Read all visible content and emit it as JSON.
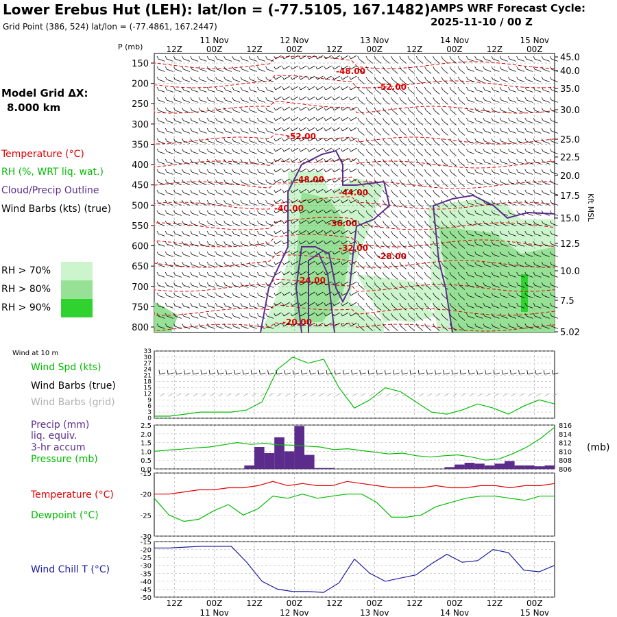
{
  "header": {
    "title": "Lower Erebus Hut (LEH):  lat/lon = (-77.5105, 167.1482)",
    "subtitle": "Grid Point (386, 524) lat/lon = (-77.4861, 167.2447)",
    "cycle_line1": "AMPS WRF Forecast Cycle:",
    "cycle_line2": "2025-11-10 / 00  Z"
  },
  "colors": {
    "temperature": "#e00000",
    "rh": "#00bb00",
    "cloud": "#5b2c8c",
    "wind": "#000000",
    "grid_barbs": "#b0b0b0",
    "precip": "#5b2c8c",
    "pressure": "#00bb00",
    "windchill": "#1a1aa0",
    "rh70": "#cdf5cd",
    "rh80": "#96e196",
    "rh90": "#2fd22f"
  },
  "time_axis": {
    "top_day_labels": [
      "11 Nov",
      "12 Nov",
      "13 Nov",
      "14 Nov",
      "15 Nov"
    ],
    "hour_labels": [
      "12Z",
      "00Z",
      "12Z",
      "00Z",
      "12Z",
      "00Z",
      "12Z",
      "00Z",
      "12Z",
      "00Z"
    ],
    "bottom_day_labels": [
      "11 Nov",
      "12 Nov",
      "13 Nov",
      "14 Nov",
      "15 Nov"
    ]
  },
  "legend": {
    "model_grid_label": "Model Grid ΔX:",
    "model_grid_value": "8.000 km",
    "temperature": "Temperature (°C)",
    "rh": "RH (%, WRT liq. wat.)",
    "cloud": "Cloud/Precip Outline",
    "wind": "Wind Barbs (kts) (true)",
    "rh70": "RH > 70%",
    "rh80": "RH > 80%",
    "rh90": "RH > 90%"
  },
  "chart_data": [
    {
      "type": "time-height cross section",
      "p_axis_title": "P (mb)",
      "pressure_ticks": [
        "150",
        "200",
        "250",
        "300",
        "350",
        "400",
        "450",
        "500",
        "550",
        "600",
        "650",
        "700",
        "750",
        "800"
      ],
      "kft_axis_title": "Kft MSL",
      "kft_ticks": [
        "45.0",
        "40.0",
        "35.0",
        "30.0",
        "25.0",
        "22.5",
        "20.0",
        "17.5",
        "15.0",
        "12.5",
        "10.0",
        "7.5",
        "5.02"
      ],
      "temperature_labels": [
        "-48.00",
        "-52.00",
        "-52.00",
        "-48.00",
        "-44.00",
        "-40.00",
        "-36.00",
        "-32.00",
        "-28.00",
        "-24.00",
        "-20.00"
      ]
    },
    {
      "type": "line",
      "title": "Wind at 10 m",
      "series_labels": [
        "Wind Spd (kts)",
        "Wind Barbs (true)",
        "Wind Barbs (grid)"
      ],
      "y_ticks": [
        "33",
        "30",
        "27",
        "24",
        "21",
        "18",
        "15",
        "12",
        "9",
        "6",
        "3",
        "0"
      ],
      "ylim": [
        0,
        33
      ],
      "x_hours": [
        0,
        6,
        12,
        18,
        24,
        30,
        36,
        42,
        48,
        54,
        60,
        66,
        72,
        78,
        84,
        90,
        96,
        102,
        108,
        114,
        120
      ],
      "wind_speed": [
        1,
        1,
        2,
        3,
        3,
        3,
        4,
        8,
        24,
        30,
        27,
        29,
        15,
        5,
        9,
        15,
        13,
        8,
        3,
        2,
        4,
        7,
        5,
        2,
        6,
        9,
        7
      ]
    },
    {
      "type": "bar+line",
      "series_labels": [
        "Precip (mm)",
        "liq. equiv.",
        "3-hr accum",
        "Pressure (mb)"
      ],
      "precip_ticks": [
        "2.5",
        "2.0",
        "1.5",
        "1.0",
        "0.5",
        "0.0"
      ],
      "pressure_ticks": [
        "816",
        "814",
        "812",
        "810",
        "808",
        "806"
      ],
      "pressure_unit": "(mb)",
      "precip_bars_hours": [
        27,
        30,
        33,
        36,
        39,
        42,
        45,
        48,
        51
      ],
      "precip_bars_mm": [
        0.2,
        1.25,
        0.9,
        1.8,
        1.0,
        2.45,
        0.8,
        0.05,
        0.05
      ],
      "precip_bars2_hours": [
        87,
        90,
        93,
        96,
        99,
        102,
        105,
        108,
        111,
        114,
        117
      ],
      "precip_bars2_mm": [
        0.1,
        0.25,
        0.35,
        0.3,
        0.2,
        0.3,
        0.45,
        0.2,
        0.2,
        0.15,
        0.2
      ],
      "pressure_mb": [
        810,
        810.3,
        810.5,
        810.8,
        811,
        811.5,
        812,
        811.6,
        811.8,
        811.5,
        811.4,
        811.2,
        811,
        810.4,
        810.6,
        810.2,
        809.8,
        809.4,
        809.6,
        809,
        808.7,
        809,
        809.2,
        808.7,
        808,
        808.3,
        809.5,
        811,
        813,
        815.5
      ]
    },
    {
      "type": "line",
      "series_labels": [
        "Temperature (°C)",
        "Dewpoint (°C)"
      ],
      "y_ticks": [
        "-15",
        "-20",
        "-25",
        "-30"
      ],
      "ylim": [
        -30,
        -15
      ],
      "temperature": [
        -20,
        -20,
        -19.5,
        -19,
        -19,
        -18.5,
        -18.5,
        -18,
        -17,
        -18,
        -17.5,
        -18,
        -18,
        -17,
        -17.5,
        -18,
        -18.5,
        -18.5,
        -18.5,
        -18,
        -18.5,
        -18.5,
        -18,
        -18,
        -18.5,
        -18,
        -18,
        -17.5
      ],
      "dewpoint": [
        -21,
        -25,
        -26.5,
        -26,
        -24,
        -22.5,
        -25,
        -23.5,
        -20.5,
        -21,
        -20,
        -21,
        -20.5,
        -20,
        -20,
        -22,
        -25.5,
        -25.5,
        -25,
        -23,
        -22,
        -21,
        -20.5,
        -20.5,
        -21,
        -21.5,
        -20.5,
        -20.5
      ]
    },
    {
      "type": "line",
      "series_labels": [
        "Wind Chill T (°C)"
      ],
      "y_ticks": [
        "-15",
        "-20",
        "-25",
        "-30",
        "-35",
        "-40",
        "-45",
        "-50"
      ],
      "ylim": [
        -50,
        -15
      ],
      "windchill": [
        -19,
        -19,
        -18.5,
        -18,
        -18,
        -18,
        -28,
        -40,
        -45,
        -46.5,
        -46.5,
        -47,
        -41,
        -26,
        -35,
        -40,
        -38,
        -36,
        -29,
        -23,
        -28,
        -27,
        -20,
        -22,
        -33,
        -34,
        -30
      ]
    }
  ]
}
